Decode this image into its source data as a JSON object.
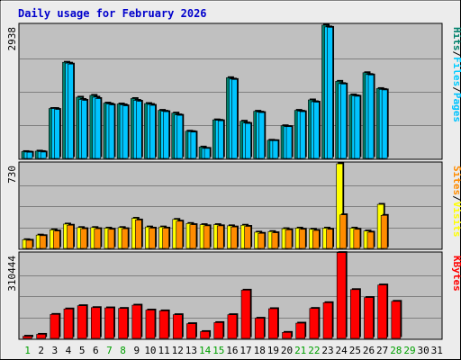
{
  "chart_data": {
    "title": "Daily usage for February 2026",
    "type": "bar",
    "colors": {
      "frame": "#ececec",
      "panel": "#c0c0c0",
      "grid": "#808080",
      "hits": "#00806b",
      "files": "#00ccff",
      "pages": "#00c4ff",
      "visits": "#ffff00",
      "sites": "#ff8c00",
      "kbytes": "#ff0000",
      "weekend_day": "#00a000",
      "weekday_day": "#000000",
      "title": "#0000cc"
    },
    "days": [
      "1",
      "2",
      "3",
      "4",
      "5",
      "6",
      "7",
      "8",
      "9",
      "10",
      "11",
      "12",
      "13",
      "14",
      "15",
      "16",
      "17",
      "18",
      "19",
      "20",
      "21",
      "22",
      "23",
      "24",
      "25",
      "26",
      "27",
      "28",
      "29",
      "30",
      "31"
    ],
    "weekend_days": [
      "1",
      "7",
      "8",
      "14",
      "15",
      "21",
      "22",
      "28",
      "29"
    ],
    "top_panel": {
      "ymax_label": "2938",
      "ylim": [
        0,
        2938
      ],
      "legend": [
        "Hits",
        "/",
        "Files",
        "/",
        "Pages"
      ],
      "series": [
        {
          "name": "Hits",
          "values": [
            150,
            160,
            1100,
            2120,
            1350,
            1390,
            1220,
            1200,
            1320,
            1210,
            1060,
            1000,
            600,
            250,
            850,
            1780,
            820,
            1040,
            400,
            720,
            1060,
            1290,
            2940,
            1700,
            1400,
            1890,
            1540,
            null,
            null,
            null,
            null
          ]
        },
        {
          "name": "Files",
          "values": [
            140,
            150,
            1100,
            2100,
            1300,
            1350,
            1200,
            1180,
            1280,
            1190,
            1040,
            960,
            590,
            220,
            840,
            1750,
            780,
            1020,
            390,
            700,
            1040,
            1250,
            2900,
            1650,
            1380,
            1850,
            1520,
            null,
            null,
            null,
            null
          ]
        },
        {
          "name": "Pages",
          "values": [
            135,
            140,
            1080,
            2080,
            1280,
            1320,
            1180,
            1160,
            1260,
            1170,
            1030,
            950,
            580,
            220,
            830,
            1740,
            770,
            1010,
            390,
            700,
            1030,
            1240,
            2890,
            1640,
            1370,
            1840,
            1510,
            null,
            null,
            null,
            null
          ]
        }
      ]
    },
    "middle_panel": {
      "ymax_label": "730",
      "ylim": [
        0,
        730
      ],
      "legend": [
        "Sites",
        "/",
        "Visits"
      ],
      "series": [
        {
          "name": "Visits",
          "values": [
            75,
            115,
            160,
            210,
            180,
            180,
            175,
            180,
            260,
            185,
            185,
            250,
            215,
            205,
            205,
            195,
            200,
            140,
            145,
            170,
            175,
            165,
            175,
            730,
            175,
            150,
            380,
            null,
            null,
            null,
            null
          ]
        },
        {
          "name": "Sites",
          "values": [
            70,
            110,
            150,
            200,
            170,
            170,
            165,
            170,
            245,
            175,
            175,
            235,
            205,
            195,
            195,
            185,
            190,
            130,
            135,
            160,
            165,
            155,
            165,
            290,
            165,
            140,
            285,
            null,
            null,
            null,
            null
          ]
        }
      ]
    },
    "bottom_panel": {
      "ymax_label": "310444",
      "ylim": [
        0,
        310444
      ],
      "legend": [
        "KBytes"
      ],
      "series": [
        {
          "name": "KBytes",
          "values": [
            8000,
            15000,
            88000,
            108000,
            120000,
            113000,
            112000,
            110000,
            122000,
            104000,
            101000,
            87000,
            54000,
            25000,
            58000,
            87000,
            177000,
            74000,
            109000,
            22000,
            56000,
            110000,
            131000,
            315000,
            179000,
            150000,
            196000,
            136000,
            null,
            null,
            null
          ]
        }
      ]
    }
  }
}
